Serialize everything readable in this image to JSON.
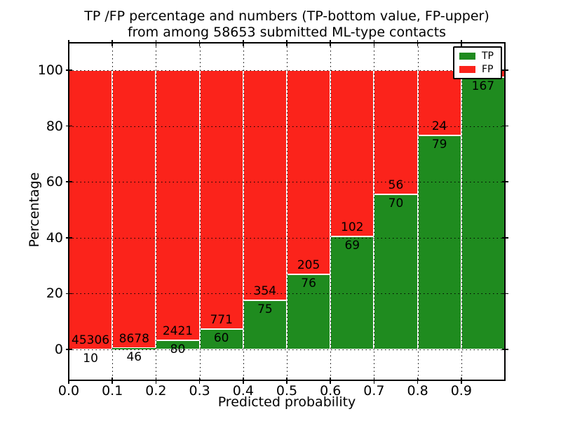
{
  "figure": {
    "title_line1": "TP /FP percentage and numbers (TP-bottom value, FP-upper)",
    "title_line2": "from among 58653 submitted ML-type contacts",
    "xlabel": "Predicted probability",
    "ylabel": "Percentage"
  },
  "chart_data": {
    "type": "bar",
    "stacked": true,
    "title": "TP /FP percentage and numbers (TP-bottom value, FP-upper) from among 58653 submitted ML-type contacts",
    "xlabel": "Predicted probability",
    "ylabel": "Percentage",
    "xlim": [
      0.0,
      1.0
    ],
    "ylim": [
      -11,
      110
    ],
    "grid": "dotted",
    "x_tick_labels": [
      "0.0",
      "0.1",
      "0.2",
      "0.3",
      "0.4",
      "0.5",
      "0.6",
      "0.7",
      "0.8",
      "0.9"
    ],
    "y_ticks": [
      0,
      20,
      40,
      60,
      80,
      100
    ],
    "y_tick_labels": [
      "0",
      "20",
      "40",
      "60",
      "80",
      "100"
    ],
    "colors": {
      "tp": "#1f8b1f",
      "fp": "#fb231b"
    },
    "legend": {
      "position": "upper right",
      "entries": [
        {
          "label": "TP",
          "color": "#1f8b1f"
        },
        {
          "label": "FP",
          "color": "#fb231b"
        }
      ]
    },
    "bars": [
      {
        "range": [
          0.0,
          0.1
        ],
        "tp_count": 10,
        "fp_count": 45306,
        "tp_pct": 0.02
      },
      {
        "range": [
          0.1,
          0.2
        ],
        "tp_count": 46,
        "fp_count": 8678,
        "tp_pct": 0.53
      },
      {
        "range": [
          0.2,
          0.3
        ],
        "tp_count": 80,
        "fp_count": 2421,
        "tp_pct": 3.2
      },
      {
        "range": [
          0.3,
          0.4
        ],
        "tp_count": 60,
        "fp_count": 771,
        "tp_pct": 7.2
      },
      {
        "range": [
          0.4,
          0.5
        ],
        "tp_count": 75,
        "fp_count": 354,
        "tp_pct": 17.5
      },
      {
        "range": [
          0.5,
          0.6
        ],
        "tp_count": 76,
        "fp_count": 205,
        "tp_pct": 27.0
      },
      {
        "range": [
          0.6,
          0.7
        ],
        "tp_count": 69,
        "fp_count": 102,
        "tp_pct": 40.4
      },
      {
        "range": [
          0.7,
          0.8
        ],
        "tp_count": 70,
        "fp_count": 56,
        "tp_pct": 55.6
      },
      {
        "range": [
          0.8,
          0.9
        ],
        "tp_count": 79,
        "fp_count": 24,
        "tp_pct": 76.7
      },
      {
        "range": [
          0.9,
          1.0
        ],
        "tp_count": 167,
        "fp_count": null,
        "tp_pct": 97.6,
        "fp_label_visible": false
      }
    ]
  }
}
